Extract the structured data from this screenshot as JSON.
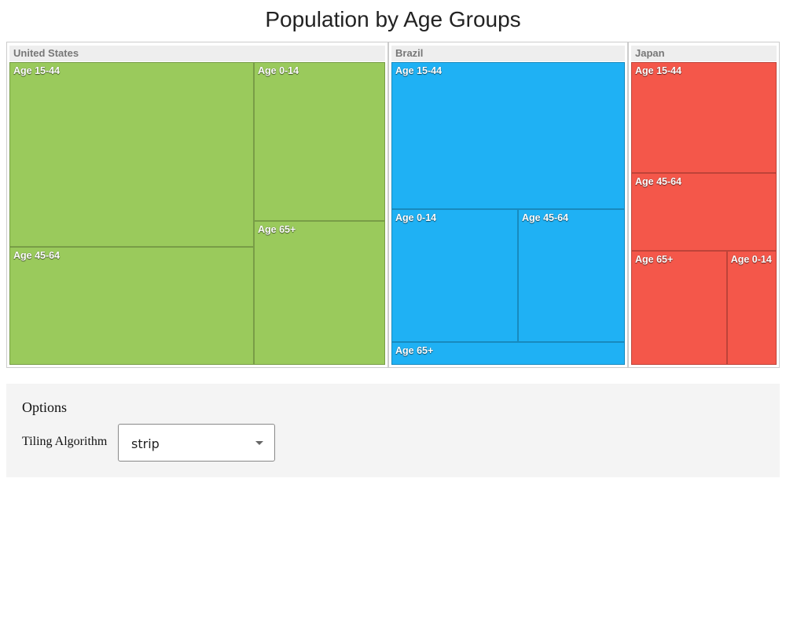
{
  "chart_data": {
    "type": "treemap",
    "title": "Population by Age Groups",
    "groups": [
      {
        "name": "United States",
        "color": "#9ACA5C",
        "children": [
          {
            "name": "Age 15-44",
            "value": 132
          },
          {
            "name": "Age 0-14",
            "value": 61
          },
          {
            "name": "Age 45-64",
            "value": 84
          },
          {
            "name": "Age 65+",
            "value": 55
          }
        ]
      },
      {
        "name": "Brazil",
        "color": "#1FB1F4",
        "children": [
          {
            "name": "Age 15-44",
            "value": 92
          },
          {
            "name": "Age 0-14",
            "value": 45
          },
          {
            "name": "Age 45-64",
            "value": 38
          },
          {
            "name": "Age 65+",
            "value": 14
          }
        ]
      },
      {
        "name": "Japan",
        "color": "#F4574A",
        "children": [
          {
            "name": "Age 15-44",
            "value": 37
          },
          {
            "name": "Age 45-64",
            "value": 26
          },
          {
            "name": "Age 65+",
            "value": 25
          },
          {
            "name": "Age 0-14",
            "value": 13
          }
        ]
      }
    ]
  },
  "options": {
    "title": "Options",
    "tiling_label": "Tiling Algorithm",
    "tiling_value": "strip"
  }
}
